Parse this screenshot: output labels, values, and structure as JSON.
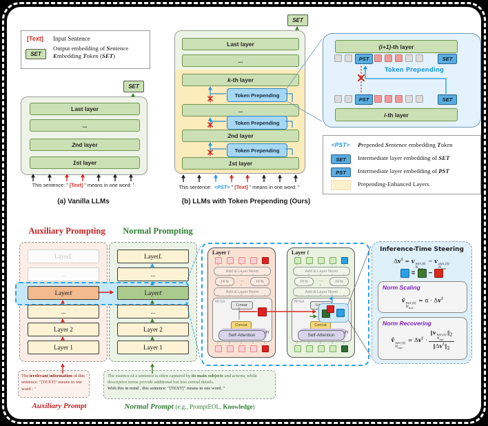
{
  "colors": {
    "red": "#d42a20",
    "blue": "#2196dd",
    "green": "#3f7d2c",
    "purple": "#8020c0",
    "bar_green": "#cbe0b4",
    "panel_yellow": "#fcebbb",
    "tp_blue": "#a6d7f3",
    "chip_blue": "#5aade0",
    "token_pink": "#f09b9b",
    "token_gray": "#dcdcdc",
    "legend_yellow": "#fdf0cd",
    "aux_orange": "#f2bb8e",
    "nor_green": "#abcb8d",
    "steer_bg": "#def0fa",
    "band_blue": "#c5e7f8"
  },
  "legend_top": {
    "text_token": "[Text]",
    "text_label": "Input Sentence",
    "set_chip": "SET",
    "set_label_html": "Output embedding of <b><i>S</i></b>entence <br><b><i>E</i></b>mbedding <b><i>T</i></b>oken (<b><i>SET</i></b>)"
  },
  "panel_a": {
    "set_chip": "SET",
    "layers_html": [
      "Last layer",
      "...",
      "<i>2</i>nd layer",
      "<i>1</i>st layer"
    ],
    "prompt_html": "This sentence: &quot; <b class=\"red\">[Text]</b> &quot; means in one word: &quot;",
    "caption": "(a) Vanilla LLMs"
  },
  "panel_b": {
    "set_chip": "SET",
    "last": "Last layer",
    "dots1": "...",
    "kth_html": "<i>k</i>-th layer",
    "dots2": "...",
    "second_html": "<i>2</i>nd layer",
    "first_html": "<i>1</i>st layer",
    "tp_label": "Token Prepending",
    "prompt_html": "This sentence:&nbsp; <b class=\"blue\"><i>&lt;PST&gt;</i></b> &quot; <b class=\"red\">[Text]</b> &quot; means in one word: &quot;",
    "caption": "(b) LLMs with Token Prepending (Ours)"
  },
  "inset": {
    "top_layer_html": "<i>(i+1)</i>-th layer",
    "bottom_layer_html": "<i>i</i>-th layer",
    "pst": "PST",
    "set": "SET",
    "tp_label": "Token Prepending"
  },
  "legend_right": {
    "rows": [
      {
        "chip_html": "<b><i>&lt;PST&gt;</i></b>",
        "label_html": "<b><i>P</i></b>repended <b><i>S</i></b>entence embedding <b><i>T</i></b>oken"
      },
      {
        "chip_html": "SET",
        "label_html": "Intermediate layer embedding of <b><i>SET</i></b>"
      },
      {
        "chip_html": "PST",
        "label_html": "Intermediate layer embedding of <b><i>PST</i></b>"
      },
      {
        "chip_html": "",
        "label_html": "Prepending-Enhanced Layers"
      }
    ]
  },
  "bottom": {
    "aux_header": "Auxiliary Prompting",
    "nor_header": "Normal Prompting",
    "aux_layers_html": [
      "Layer <i>L</i>",
      "...",
      "Layer <i>ℓ</i>",
      "...",
      "Layer 2",
      "Layer 1"
    ],
    "nor_layers_html": [
      "Layer <i>L</i>",
      "...",
      "Layer <i>ℓ</i>",
      "...",
      "Layer 2",
      "Layer 1"
    ],
    "aux_prompt_html": "The <b>irrelevant information</b> of this sentence: &quot;[TEXT]&quot; means in one word : &quot;",
    "aux_prompt_label": "Auxiliary Prompt",
    "nor_prompt_html": "<span class=\"g1\">The essence of a sentence is often captured by <b>its main subjects</b> and actions, while descriptive terms provide additional but less central details.</span><br><span class=\"g2\">With this in mind , this sentence: &quot;[TEXT]&quot; means in one word: &quot;</span>",
    "nor_prompt_label_html": "<b><i>Normal Prompt</i></b> <span style=\"font-size:9px\">(e.g., PromptEOL, <b>Knowledge</b>)</span>"
  },
  "blocks": {
    "title_html": "Layer <i>ℓ</i>",
    "add_norm": "Add & Layer Norm",
    "ffn": "FFN",
    "dots": "⋯",
    "mhsa": "MHSA",
    "linear": "Linear",
    "concat": "Concat",
    "self_attention": "Self-Attention",
    "heads_html": "∕<i>H</i>"
  },
  "steering": {
    "title": "Inference-Time Steering",
    "delta_formula_html": "Δ<b>v</b><sup>ℓ</sup> = <b>v</b><span class=\"ss\"><span>nor,(ℓ)</span><span>N<sub>nor</sub></span></span> − <b>v</b><span class=\"ss\"><span>aux,(ℓ)</span><span>N<sub>aux</sub></span></span>",
    "scaling_title": "Norm Scaling",
    "scaling_formula_html": "<b>v̂</b><span class=\"ss\"><span>nor,(ℓ)</span><span>N<sub>nor</sub></span></span> = α · Δ<b>v</b><sup>ℓ</sup>",
    "recovering_title": "Norm Recovering",
    "recovering_formula_html": "<b>v̂</b><span class=\"ss\"><span>nor,(ℓ)</span><span>N<sub>nor</sub></span></span> = Δ<b>v</b><sup>ℓ</sup> · <span class=\"frac\"><span class=\"fn\">‖<b>v</b><span class=\"ss\"><span>nor,(ℓ)</span><span>N<sub>nor</sub></span></span>‖<sub>2</sub></span><span>‖Δ<b>v</b><sup>ℓ</sup>‖<sub>2</sub></span></span>"
  }
}
